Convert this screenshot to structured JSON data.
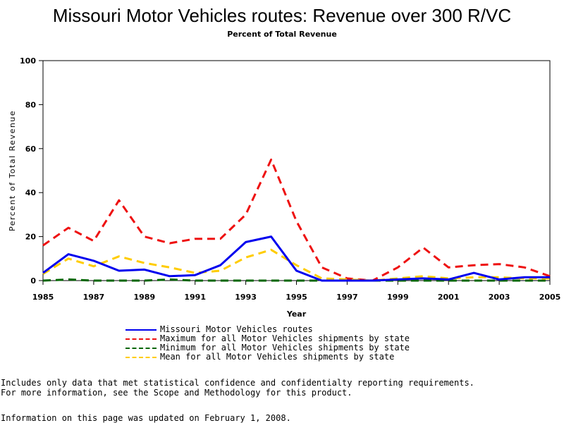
{
  "colors": {
    "missouri": "#0000ee",
    "maximum": "#ee1111",
    "minimum": "#006600",
    "mean": "#ffcc00"
  },
  "footnotes": {
    "line1": "Includes only data that met statistical confidence and confidentialty reporting requirements.",
    "line2": "For more information, see the Scope and Methodology for this product.",
    "updated": "Information on this page was updated on February 1, 2008."
  },
  "chart_data": {
    "type": "line",
    "title": "Missouri Motor Vehicles routes: Revenue over 300 R/VC",
    "subtitle": "Percent of Total Revenue",
    "xlabel": "Year",
    "ylabel": "Percent of Total Revenue",
    "xlim": [
      1985,
      2005
    ],
    "ylim": [
      0,
      100
    ],
    "xticks": [
      1985,
      1987,
      1989,
      1991,
      1993,
      1995,
      1997,
      1999,
      2001,
      2003,
      2005
    ],
    "yticks": [
      0,
      20,
      40,
      60,
      80,
      100
    ],
    "x": [
      1985,
      1986,
      1987,
      1988,
      1989,
      1990,
      1991,
      1992,
      1993,
      1994,
      1995,
      1996,
      1997,
      1998,
      1999,
      2000,
      2001,
      2002,
      2003,
      2004,
      2005
    ],
    "grid": false,
    "legend_position": "bottom",
    "series": [
      {
        "name": "Missouri Motor Vehicles routes",
        "color_key": "missouri",
        "style": "solid",
        "values": [
          3.5,
          12,
          9,
          4.5,
          5,
          2,
          2.5,
          7,
          17.5,
          20,
          4.5,
          0,
          0,
          0,
          0.5,
          1,
          0.5,
          3.5,
          0.5,
          1.5,
          1.5
        ]
      },
      {
        "name": "Maximum for all Motor Vehicles shipments by state",
        "color_key": "maximum",
        "style": "dashed",
        "values": [
          16,
          24,
          18,
          36.5,
          20,
          17,
          19,
          19,
          30,
          55,
          27,
          6,
          1,
          0,
          6,
          15,
          6,
          7,
          7.5,
          6,
          2
        ]
      },
      {
        "name": "Minimum for all Motor Vehicles shipments by state",
        "color_key": "minimum",
        "style": "dashed",
        "values": [
          0,
          0.5,
          0,
          0,
          0,
          0.5,
          0,
          0,
          0,
          0,
          0,
          0,
          0,
          0,
          0,
          0,
          0,
          0,
          0,
          0,
          0
        ]
      },
      {
        "name": "Mean for all Motor Vehicles shipments by state",
        "color_key": "mean",
        "style": "dashed",
        "values": [
          3,
          10,
          6.5,
          11,
          8,
          6,
          3.5,
          4.5,
          10.5,
          14,
          7,
          1,
          0.5,
          0,
          1,
          2,
          1,
          1.5,
          1.5,
          1,
          1
        ]
      }
    ]
  }
}
